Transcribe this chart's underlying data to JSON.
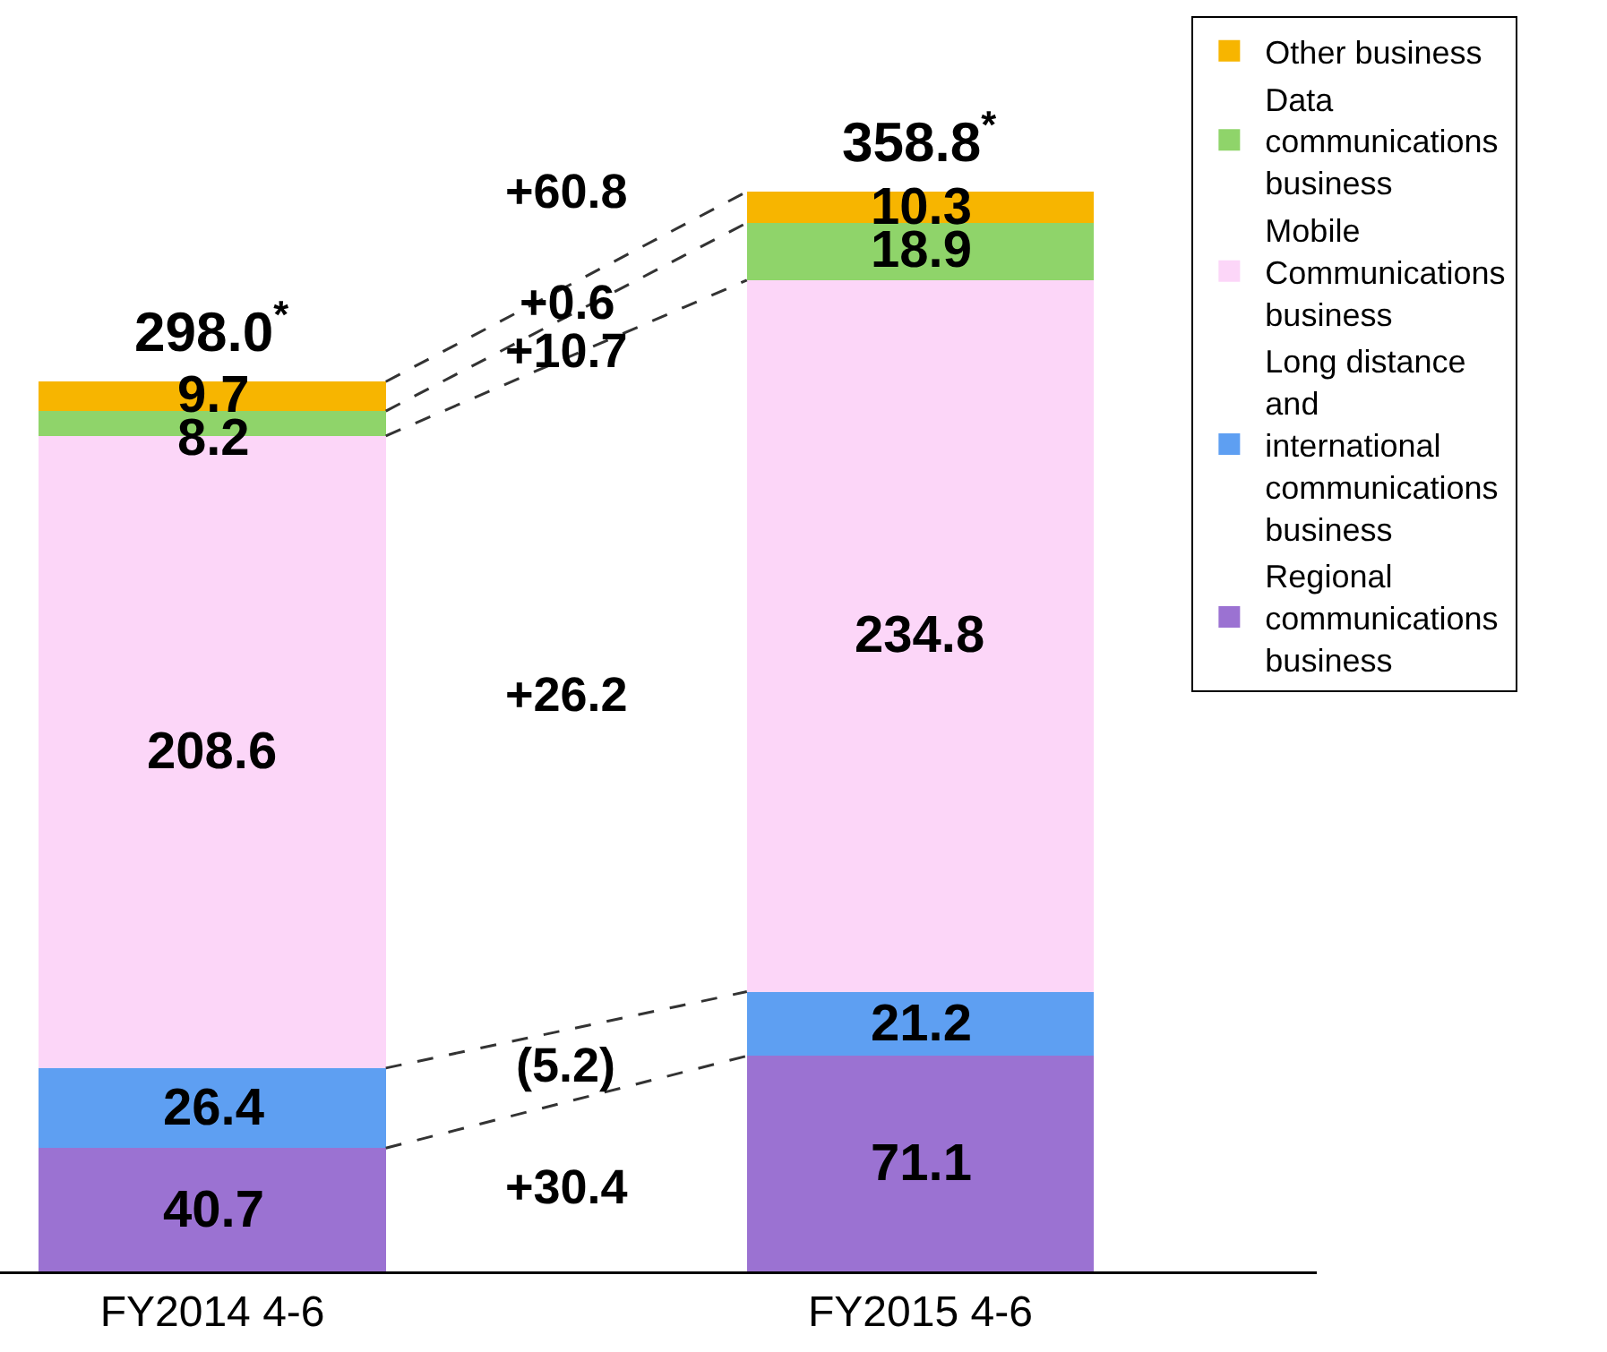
{
  "chart_data": {
    "type": "bar",
    "stacked": true,
    "categories": [
      "FY2014 4-6",
      "FY2015 4-6"
    ],
    "series": [
      {
        "name": "Regional communications business",
        "color": "#9b72d2",
        "values": [
          40.7,
          71.1
        ]
      },
      {
        "name": "Long distance and international communications business",
        "color": "#5e9ff2",
        "values": [
          26.4,
          21.2
        ]
      },
      {
        "name": "Mobile Communications business",
        "color": "#fcd6f8",
        "values": [
          208.6,
          234.8
        ]
      },
      {
        "name": "Data communications business",
        "color": "#8fd46a",
        "values": [
          8.2,
          18.9
        ]
      },
      {
        "name": "Other business",
        "color": "#f7b500",
        "values": [
          9.7,
          10.3
        ]
      }
    ],
    "data_labels": true,
    "annotations": [
      "+60.8",
      "+0.6",
      "+10.7",
      "+26.2",
      "(5.2)",
      "+30.4",
      "298.0$^{*}$",
      "358.8$^{*}$"
    ],
    "tick_labels": "x",
    "grid": false,
    "legend": "top right"
  }
}
